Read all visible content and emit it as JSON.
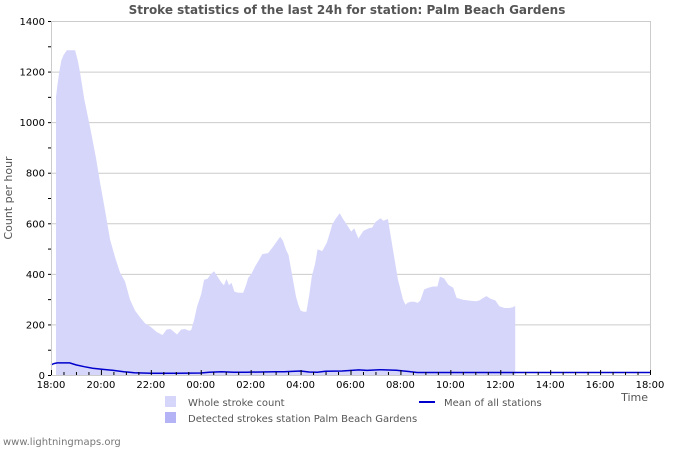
{
  "footer": "www.lightningmaps.org",
  "colors": {
    "whole_fill": "#d6d6fb",
    "detected_fill": "#b3b3f5",
    "mean_line": "#0000cc",
    "grid": "#cccccc",
    "axis": "#cccccc",
    "title": "#555555"
  },
  "chart_data": {
    "type": "area",
    "title": "Stroke statistics of the last 24h for station: Palm Beach Gardens",
    "xlabel": "Time",
    "ylabel": "Count per hour",
    "ylim": [
      0,
      1400
    ],
    "yticks": [
      0,
      200,
      400,
      600,
      800,
      1000,
      1200,
      1400
    ],
    "xticks": [
      "18:00",
      "20:00",
      "22:00",
      "00:00",
      "02:00",
      "04:00",
      "06:00",
      "08:00",
      "10:00",
      "12:00",
      "14:00",
      "16:00",
      "18:00"
    ],
    "x_unit": "minutes since 18:00",
    "grid": true,
    "legend": [
      {
        "label": "Whole stroke count",
        "type": "area",
        "color": "#d6d6fb"
      },
      {
        "label": "Detected strokes station Palm Beach Gardens",
        "type": "area",
        "color": "#b3b3f5"
      },
      {
        "label": "Mean of all stations",
        "type": "line",
        "color": "#0000cc"
      }
    ],
    "series": [
      {
        "name": "Whole stroke count",
        "points": [
          [
            12,
            1100
          ],
          [
            15,
            1140
          ],
          [
            20,
            1200
          ],
          [
            25,
            1245
          ],
          [
            30,
            1265
          ],
          [
            38,
            1284
          ],
          [
            58,
            1284
          ],
          [
            65,
            1240
          ],
          [
            70,
            1195
          ],
          [
            80,
            1090
          ],
          [
            94,
            980
          ],
          [
            108,
            860
          ],
          [
            118,
            760
          ],
          [
            130,
            650
          ],
          [
            142,
            535
          ],
          [
            155,
            460
          ],
          [
            166,
            405
          ],
          [
            178,
            370
          ],
          [
            190,
            298
          ],
          [
            202,
            255
          ],
          [
            214,
            228
          ],
          [
            226,
            205
          ],
          [
            240,
            190
          ],
          [
            254,
            170
          ],
          [
            268,
            158
          ],
          [
            278,
            180
          ],
          [
            287,
            182
          ],
          [
            296,
            170
          ],
          [
            303,
            160
          ],
          [
            313,
            180
          ],
          [
            322,
            182
          ],
          [
            332,
            175
          ],
          [
            337,
            178
          ],
          [
            344,
            218
          ],
          [
            351,
            270
          ],
          [
            361,
            320
          ],
          [
            368,
            377
          ],
          [
            376,
            380
          ],
          [
            385,
            400
          ],
          [
            392,
            410
          ],
          [
            402,
            385
          ],
          [
            410,
            365
          ],
          [
            416,
            355
          ],
          [
            422,
            380
          ],
          [
            428,
            355
          ],
          [
            434,
            365
          ],
          [
            441,
            330
          ],
          [
            450,
            325
          ],
          [
            462,
            325
          ],
          [
            469,
            356
          ],
          [
            474,
            384
          ],
          [
            481,
            398
          ],
          [
            491,
            430
          ],
          [
            500,
            455
          ],
          [
            508,
            478
          ],
          [
            522,
            482
          ],
          [
            532,
            503
          ],
          [
            544,
            531
          ],
          [
            551,
            547
          ],
          [
            558,
            530
          ],
          [
            565,
            495
          ],
          [
            571,
            475
          ],
          [
            577,
            420
          ],
          [
            583,
            365
          ],
          [
            589,
            310
          ],
          [
            595,
            276
          ],
          [
            600,
            255
          ],
          [
            607,
            250
          ],
          [
            614,
            250
          ],
          [
            621,
            318
          ],
          [
            627,
            390
          ],
          [
            635,
            440
          ],
          [
            641,
            497
          ],
          [
            652,
            490
          ],
          [
            663,
            523
          ],
          [
            670,
            560
          ],
          [
            676,
            595
          ],
          [
            684,
            617
          ],
          [
            694,
            640
          ],
          [
            701,
            620
          ],
          [
            711,
            595
          ],
          [
            722,
            567
          ],
          [
            729,
            580
          ],
          [
            739,
            540
          ],
          [
            751,
            570
          ],
          [
            764,
            580
          ],
          [
            772,
            583
          ],
          [
            780,
            605
          ],
          [
            792,
            620
          ],
          [
            799,
            610
          ],
          [
            810,
            617
          ],
          [
            822,
            497
          ],
          [
            834,
            378
          ],
          [
            846,
            300
          ],
          [
            852,
            278
          ],
          [
            857,
            285
          ],
          [
            864,
            290
          ],
          [
            874,
            290
          ],
          [
            881,
            285
          ],
          [
            888,
            295
          ],
          [
            897,
            338
          ],
          [
            907,
            345
          ],
          [
            919,
            350
          ],
          [
            929,
            350
          ],
          [
            935,
            389
          ],
          [
            945,
            382
          ],
          [
            955,
            357
          ],
          [
            967,
            345
          ],
          [
            975,
            305
          ],
          [
            992,
            297
          ],
          [
            1009,
            294
          ],
          [
            1022,
            292
          ],
          [
            1030,
            295
          ],
          [
            1039,
            305
          ],
          [
            1047,
            312
          ],
          [
            1056,
            302
          ],
          [
            1068,
            295
          ],
          [
            1078,
            272
          ],
          [
            1090,
            265
          ],
          [
            1102,
            265
          ],
          [
            1110,
            268
          ],
          [
            1116,
            273
          ]
        ]
      },
      {
        "name": "Detected strokes station Palm Beach Gardens",
        "points": [
          [
            0,
            0
          ],
          [
            1440,
            0
          ]
        ]
      },
      {
        "name": "Mean of all stations",
        "points": [
          [
            0,
            40
          ],
          [
            7,
            45
          ],
          [
            15,
            48
          ],
          [
            45,
            48
          ],
          [
            60,
            40
          ],
          [
            80,
            33
          ],
          [
            100,
            27
          ],
          [
            125,
            22
          ],
          [
            150,
            18
          ],
          [
            175,
            13
          ],
          [
            200,
            9
          ],
          [
            240,
            7
          ],
          [
            300,
            7
          ],
          [
            360,
            8
          ],
          [
            380,
            11
          ],
          [
            410,
            13
          ],
          [
            440,
            11
          ],
          [
            470,
            11
          ],
          [
            540,
            13
          ],
          [
            560,
            13
          ],
          [
            600,
            16
          ],
          [
            620,
            12
          ],
          [
            640,
            11
          ],
          [
            660,
            15
          ],
          [
            700,
            16
          ],
          [
            740,
            20
          ],
          [
            760,
            18
          ],
          [
            790,
            21
          ],
          [
            830,
            19
          ],
          [
            860,
            14
          ],
          [
            880,
            10
          ],
          [
            900,
            10
          ],
          [
            1000,
            10
          ],
          [
            1100,
            10
          ],
          [
            1440,
            10
          ]
        ]
      }
    ]
  }
}
